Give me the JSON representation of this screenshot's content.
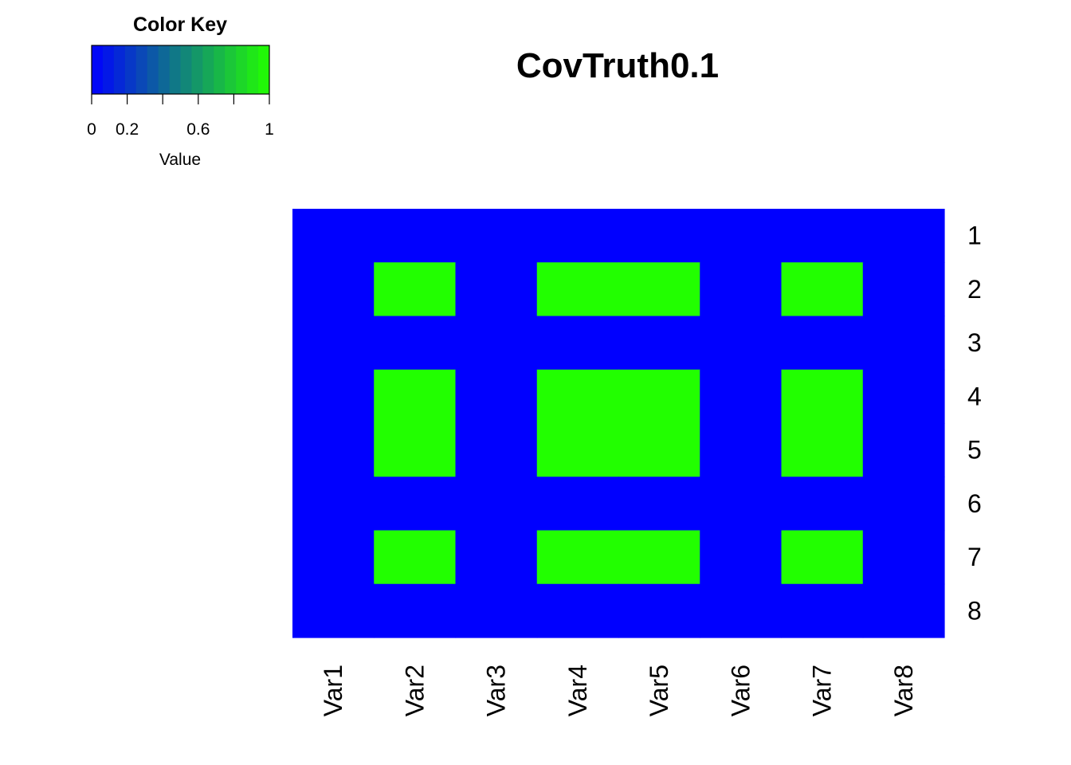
{
  "chart_data": {
    "type": "heatmap",
    "title": "CovTruth0.1",
    "columns": [
      "Var1",
      "Var2",
      "Var3",
      "Var4",
      "Var5",
      "Var6",
      "Var7",
      "Var8"
    ],
    "rows": [
      "1",
      "2",
      "3",
      "4",
      "5",
      "6",
      "7",
      "8"
    ],
    "values": [
      [
        0,
        0,
        0,
        0,
        0,
        0,
        0,
        0
      ],
      [
        0,
        1,
        0,
        1,
        1,
        0,
        1,
        0
      ],
      [
        0,
        0,
        0,
        0,
        0,
        0,
        0,
        0
      ],
      [
        0,
        1,
        0,
        1,
        1,
        0,
        1,
        0
      ],
      [
        0,
        1,
        0,
        1,
        1,
        0,
        1,
        0
      ],
      [
        0,
        0,
        0,
        0,
        0,
        0,
        0,
        0
      ],
      [
        0,
        1,
        0,
        1,
        1,
        0,
        1,
        0
      ],
      [
        0,
        0,
        0,
        0,
        0,
        0,
        0,
        0
      ]
    ],
    "low_color": "#0000ff",
    "high_color": "#22ff00",
    "color_key": {
      "title": "Color Key",
      "xlabel": "Value",
      "ticks": [
        0,
        0.2,
        0.4,
        0.6,
        0.8,
        1
      ],
      "tick_labels": [
        "0",
        "0.2",
        "",
        "0.6",
        "",
        "1"
      ],
      "range": [
        0,
        1
      ],
      "bins": 16
    }
  }
}
